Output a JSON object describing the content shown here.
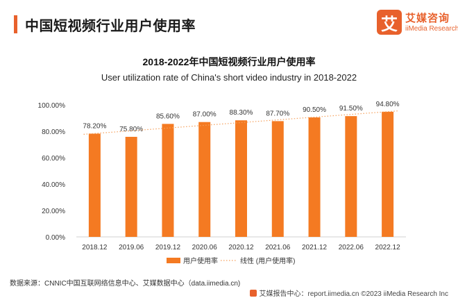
{
  "header": {
    "title": "中国短视频行业用户使用率",
    "logo_mark": "艾",
    "logo_cn": "艾媒咨询",
    "logo_en": "iiMedia Research"
  },
  "chart_data": {
    "type": "bar",
    "title": "2018-2022年中国短视频行业用户使用率",
    "subtitle": "User utilization rate of China's short video industry in 2018-2022",
    "categories": [
      "2018.12",
      "2019.06",
      "2019.12",
      "2020.06",
      "2020.12",
      "2021.06",
      "2021.12",
      "2022.06",
      "2022.12"
    ],
    "values": [
      78.2,
      75.8,
      85.6,
      87.0,
      88.3,
      87.7,
      90.5,
      91.5,
      94.8
    ],
    "value_labels": [
      "78.20%",
      "75.80%",
      "85.60%",
      "87.00%",
      "88.30%",
      "87.70%",
      "90.50%",
      "91.50%",
      "94.80%"
    ],
    "y_ticks": [
      0,
      20,
      40,
      60,
      80,
      100
    ],
    "y_tick_labels": [
      "0.00%",
      "20.00%",
      "40.00%",
      "60.00%",
      "80.00%",
      "100.00%"
    ],
    "ylim": [
      0,
      100
    ],
    "legend": [
      "用户使用率",
      "线性 (用户使用率)"
    ],
    "legend_position": "bottom",
    "trendline": "linear",
    "bar_color": "#f47a22",
    "trend_color": "#f5a05c"
  },
  "footer": {
    "source": "数据来源：CNNIC中国互联网络信息中心、艾媒数据中心（data.iimedia.cn)",
    "copyright": "艾媒报告中心：report.iimedia.cn ©2023 iiMedia Research Inc"
  }
}
